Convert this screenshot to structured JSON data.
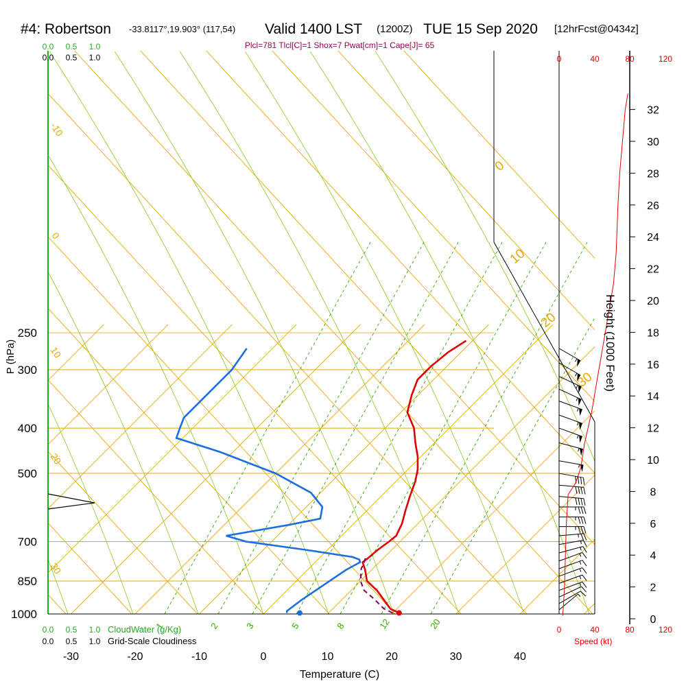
{
  "header": {
    "title_main": "#4: Robertson",
    "title_coords": "-33.8117°,19.903° (117,54)",
    "title_valid": "Valid 1400 LST",
    "title_utc": "(1200Z)",
    "title_date": "TUE 15 Sep 2020",
    "title_fcst": "[12hrFcst@0434z]",
    "indices": "Plcl=781 Tlcl[C]=1 Shox=7 Pwat[cm]=1 Cape[J]= 65"
  },
  "colors": {
    "temperature": "#e00000",
    "dewpoint": "#1a6fe0",
    "parcel": "#800060",
    "isotherm": "#e8a800",
    "mixing_ratio": "#33aa00",
    "cloud": "#22aa22",
    "speed": "#e00000",
    "wind": "#000000"
  },
  "chart_data": {
    "type": "line",
    "xlabel": "Temperature (C)",
    "ylabel": "P (hPa)",
    "y2label": "Height (1000 Feet)",
    "xlim": [
      -35,
      45
    ],
    "ylim": [
      1000,
      250
    ],
    "x_ticks": [
      "-30",
      "-20",
      "-10",
      "0",
      "10",
      "20",
      "30",
      "40"
    ],
    "pressure_ticks": [
      "250",
      "300",
      "400",
      "500",
      "700",
      "850",
      "1000"
    ],
    "height_ticks": [
      "0",
      "2",
      "4",
      "6",
      "8",
      "10",
      "12",
      "14",
      "16",
      "18",
      "20",
      "22",
      "24",
      "26",
      "28",
      "30",
      "32"
    ],
    "dry_adiabat_labels": [
      "-10",
      "0",
      "10",
      "20",
      "30",
      "0",
      "10",
      "20",
      "30"
    ],
    "mixing_ratio_labels": [
      "1",
      "2",
      "3",
      "5",
      "8",
      "12",
      "20"
    ],
    "cloud_top_ticks": [
      "0.0",
      "0.5",
      "1.0"
    ],
    "cloud_top_ticks_green": [
      "0.0",
      "0.5",
      "1.0"
    ],
    "cloud_bottom_green_ticks": [
      "0.0",
      "0.5",
      "1.0"
    ],
    "cloud_bottom_black_ticks": [
      "0.0",
      "0.5",
      "1.0"
    ],
    "cloud_water_label": "CloudWater (g/Kg)",
    "cloudiness_label": "Grid-Scale Cloudiness",
    "speed_ticks": [
      "0",
      "40",
      "80",
      "120"
    ],
    "speed_label": "Speed (kt)",
    "series": [
      {
        "name": "temperature",
        "points": [
          [
            21,
            995
          ],
          [
            19,
            975
          ],
          [
            17,
            940
          ],
          [
            14,
            890
          ],
          [
            11,
            850
          ],
          [
            9,
            805
          ],
          [
            7.4,
            775
          ],
          [
            7.6,
            760
          ],
          [
            7.8,
            730
          ],
          [
            8.3,
            700
          ],
          [
            8.5,
            680
          ],
          [
            7.5,
            640
          ],
          [
            6.0,
            600
          ],
          [
            4.5,
            560
          ],
          [
            3,
            520
          ],
          [
            1.5,
            490
          ],
          [
            -0.5,
            460
          ],
          [
            -3.0,
            430
          ],
          [
            -5.5,
            400
          ],
          [
            -9,
            370
          ],
          [
            -11,
            340
          ],
          [
            -12.5,
            315
          ],
          [
            -12.5,
            295
          ],
          [
            -12,
            275
          ],
          [
            -11,
            260
          ]
        ]
      },
      {
        "name": "dewpoint",
        "points": [
          [
            3.5,
            995
          ],
          [
            3.2,
            985
          ],
          [
            3.8,
            930
          ],
          [
            5.0,
            860
          ],
          [
            6,
            805
          ],
          [
            7.0,
            775
          ],
          [
            6.5,
            765
          ],
          [
            5,
            755
          ],
          [
            -3,
            730
          ],
          [
            -14,
            700
          ],
          [
            -18,
            680
          ],
          [
            -10,
            645
          ],
          [
            -6,
            625
          ],
          [
            -7.5,
            590
          ],
          [
            -11.5,
            550
          ],
          [
            -20,
            500
          ],
          [
            -32,
            450
          ],
          [
            -41,
            420
          ],
          [
            -42,
            400
          ],
          [
            -43,
            380
          ],
          [
            -43,
            300
          ],
          [
            -44,
            270
          ]
        ]
      },
      {
        "name": "parcel",
        "points": [
          [
            20,
            995
          ],
          [
            18,
            975
          ],
          [
            15,
            930
          ],
          [
            12,
            890
          ],
          [
            10,
            850
          ],
          [
            8.2,
            800
          ],
          [
            7.8,
            780
          ],
          [
            7.2,
            760
          ]
        ]
      }
    ],
    "surface_temperature": 21,
    "surface_dewpoint": 5.5,
    "wind_speed_profile": [
      [
        4,
        0.2
      ],
      [
        5,
        1
      ],
      [
        6,
        2
      ],
      [
        7,
        4
      ],
      [
        8,
        6
      ],
      [
        10,
        7.8
      ],
      [
        18,
        8.5
      ],
      [
        24,
        9.5
      ],
      [
        28,
        11
      ],
      [
        36,
        13
      ],
      [
        42,
        15
      ],
      [
        48,
        17
      ],
      [
        54,
        19
      ],
      [
        60,
        21
      ],
      [
        63,
        23
      ],
      [
        65,
        26
      ],
      [
        67,
        28
      ],
      [
        70,
        30
      ],
      [
        73,
        32
      ],
      [
        76,
        33
      ]
    ],
    "wind_barbs": [
      {
        "p": 270,
        "dir": 300,
        "spd": 55
      },
      {
        "p": 290,
        "dir": 300,
        "spd": 55
      },
      {
        "p": 310,
        "dir": 295,
        "spd": 55
      },
      {
        "p": 330,
        "dir": 295,
        "spd": 55
      },
      {
        "p": 350,
        "dir": 290,
        "spd": 55
      },
      {
        "p": 375,
        "dir": 290,
        "spd": 55
      },
      {
        "p": 400,
        "dir": 290,
        "spd": 55
      },
      {
        "p": 430,
        "dir": 285,
        "spd": 55
      },
      {
        "p": 470,
        "dir": 280,
        "spd": 55
      },
      {
        "p": 500,
        "dir": 280,
        "spd": 40
      },
      {
        "p": 530,
        "dir": 275,
        "spd": 40
      },
      {
        "p": 560,
        "dir": 275,
        "spd": 40
      },
      {
        "p": 590,
        "dir": 270,
        "spd": 35
      },
      {
        "p": 620,
        "dir": 270,
        "spd": 35
      },
      {
        "p": 650,
        "dir": 270,
        "spd": 35
      },
      {
        "p": 680,
        "dir": 265,
        "spd": 25
      },
      {
        "p": 710,
        "dir": 260,
        "spd": 15
      },
      {
        "p": 740,
        "dir": 255,
        "spd": 15
      },
      {
        "p": 770,
        "dir": 250,
        "spd": 15
      },
      {
        "p": 800,
        "dir": 250,
        "spd": 15
      },
      {
        "p": 830,
        "dir": 250,
        "spd": 15
      },
      {
        "p": 860,
        "dir": 250,
        "spd": 15
      },
      {
        "p": 890,
        "dir": 250,
        "spd": 15
      },
      {
        "p": 920,
        "dir": 245,
        "spd": 10
      },
      {
        "p": 950,
        "dir": 240,
        "spd": 10
      },
      {
        "p": 980,
        "dir": 230,
        "spd": 5
      }
    ]
  }
}
